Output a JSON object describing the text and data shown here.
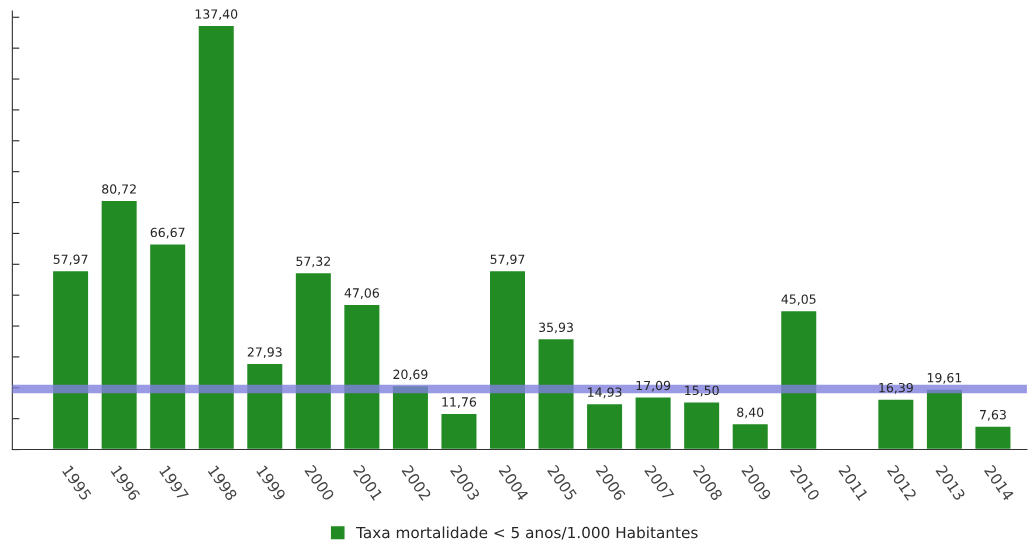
{
  "chart_data": {
    "type": "bar",
    "categories": [
      "1995",
      "1996",
      "1997",
      "1998",
      "1999",
      "2000",
      "2001",
      "2002",
      "2003",
      "2004",
      "2005",
      "2006",
      "2007",
      "2008",
      "2009",
      "2010",
      "2011",
      "2012",
      "2013",
      "2014"
    ],
    "series": [
      {
        "name": "Taxa mortalidade < 5 anos/1.000 Habitantes",
        "color": "#238b23",
        "values": [
          57.97,
          80.72,
          66.67,
          137.4,
          27.93,
          57.32,
          47.06,
          20.69,
          11.76,
          57.97,
          35.93,
          14.93,
          17.09,
          15.5,
          8.4,
          45.05,
          null,
          16.39,
          19.61,
          7.63
        ],
        "value_labels": [
          "57,97",
          "80,72",
          "66,67",
          "137,40",
          "27,93",
          "57,32",
          "47,06",
          "20,69",
          "11,76",
          "57,97",
          "35,93",
          "14,93",
          "17,09",
          "15,50",
          "8,40",
          "45,05",
          null,
          "16,39",
          "19,61",
          "7,63"
        ]
      }
    ],
    "ylim": [
      0,
      142
    ],
    "yticks": [
      {
        "value": 0,
        "label": null
      },
      {
        "value": 10,
        "label": null
      },
      {
        "value": 20,
        "label": null
      },
      {
        "value": 30,
        "label": null
      },
      {
        "value": 40,
        "label": null
      },
      {
        "value": 50,
        "label": null
      },
      {
        "value": 60,
        "label": null
      },
      {
        "value": 70,
        "label": null
      },
      {
        "value": 80,
        "label": null
      },
      {
        "value": 90,
        "label": null
      },
      {
        "value": 100,
        "label": null
      },
      {
        "value": 110,
        "label": null
      },
      {
        "value": 120,
        "label": null
      },
      {
        "value": 130,
        "label": null
      },
      {
        "value": 140,
        "label": null
      }
    ],
    "tick_labels": "x",
    "ref_lines": [
      {
        "axis": "y",
        "value": 19.6,
        "color": "#7f7fdd"
      }
    ],
    "legend": "bottom",
    "grid": false
  }
}
